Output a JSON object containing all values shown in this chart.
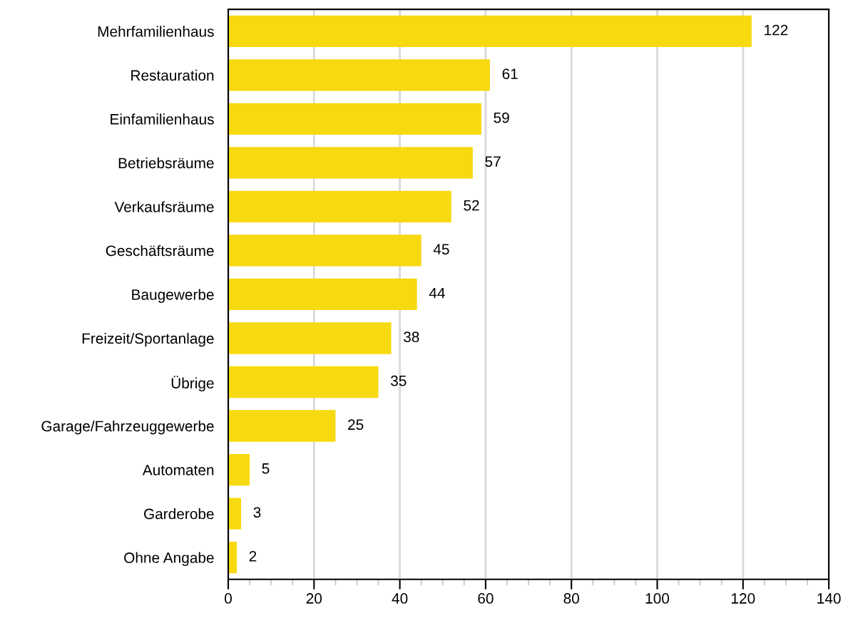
{
  "chart_data": {
    "type": "bar",
    "orientation": "horizontal",
    "categories": [
      "Mehrfamilienhaus",
      "Restauration",
      "Einfamilienhaus",
      "Betriebsräume",
      "Verkaufsräume",
      "Geschäftsräume",
      "Baugewerbe",
      "Freizeit/Sportanlage",
      "Übrige",
      "Garage/Fahrzeuggewerbe",
      "Automaten",
      "Garderobe",
      "Ohne Angabe"
    ],
    "values": [
      122,
      61,
      59,
      57,
      52,
      45,
      44,
      38,
      35,
      25,
      5,
      3,
      2
    ],
    "color": "#f7d90f",
    "xlim": [
      0,
      140
    ],
    "xticks": [
      0,
      {
        "value": 5,
        "label": null
      },
      {
        "value": 10,
        "label": null
      },
      {
        "value": 15,
        "label": null
      },
      20,
      {
        "value": 25,
        "label": null
      },
      {
        "value": 30,
        "label": null
      },
      {
        "value": 35,
        "label": null
      },
      40,
      {
        "value": 45,
        "label": null
      },
      {
        "value": 50,
        "label": null
      },
      {
        "value": 55,
        "label": null
      },
      60,
      {
        "value": 65,
        "label": null
      },
      {
        "value": 70,
        "label": null
      },
      {
        "value": 75,
        "label": null
      },
      80,
      {
        "value": 85,
        "label": null
      },
      {
        "value": 90,
        "label": null
      },
      {
        "value": 95,
        "label": null
      },
      100,
      {
        "value": 105,
        "label": null
      },
      {
        "value": 110,
        "label": null
      },
      {
        "value": 115,
        "label": null
      },
      120,
      {
        "value": 125,
        "label": null
      },
      {
        "value": 130,
        "label": null
      },
      {
        "value": 135,
        "label": null
      },
      140
    ],
    "grid": "x",
    "data_labels": true
  }
}
